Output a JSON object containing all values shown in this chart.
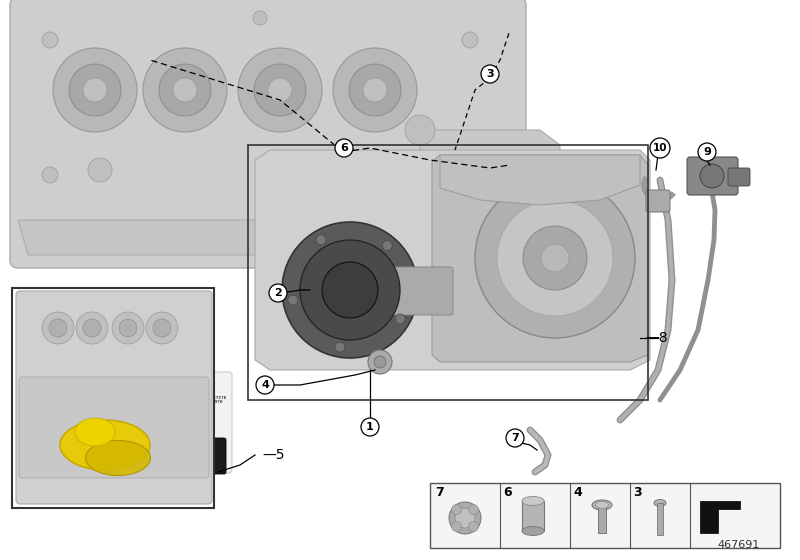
{
  "background_color": "#ffffff",
  "part_number": "467691",
  "fig_width": 8.0,
  "fig_height": 5.6,
  "dpi": 100,
  "engine_block_color": "#d2d2d2",
  "pump_dark_color": "#666666",
  "pump_light_color": "#bbbbbb",
  "strip_bg": "#f5f5f5",
  "strip_border": "#555555",
  "inset_border": "#333333",
  "yellow_color": "#e8cc00",
  "loctite_dark": "#1a1a1a",
  "loctite_light": "#f0f0f0"
}
